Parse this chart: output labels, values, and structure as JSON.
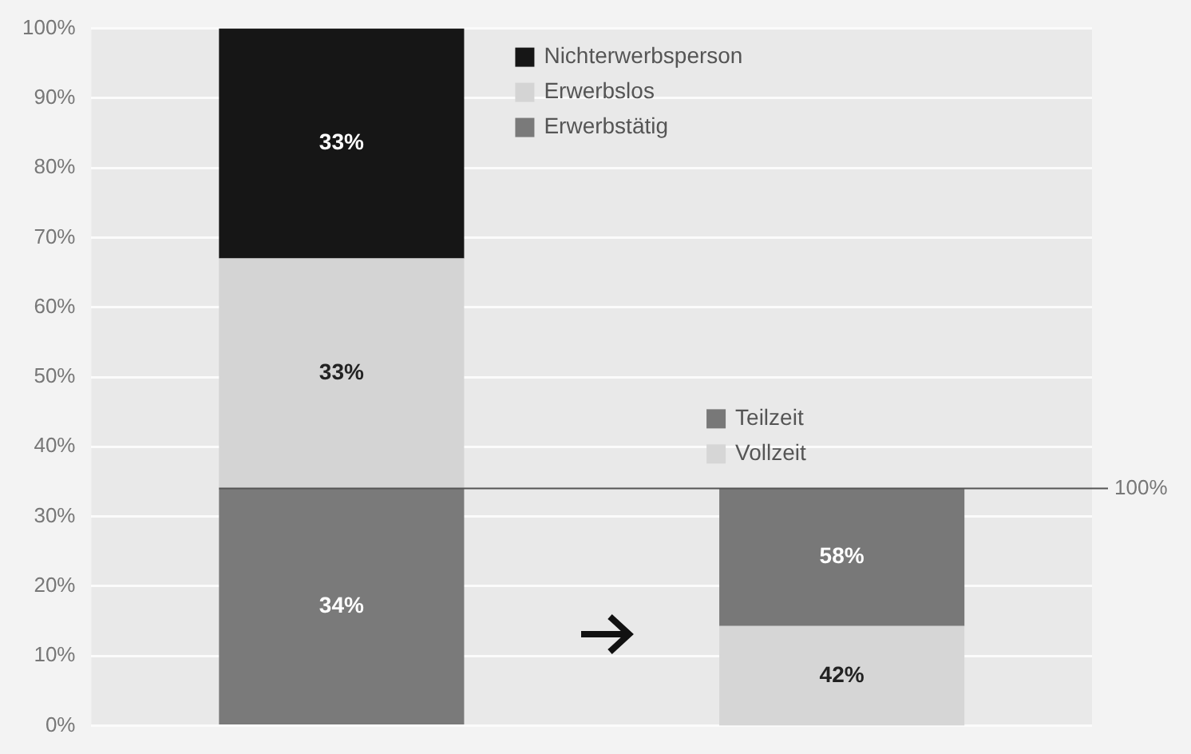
{
  "chart_data": {
    "type": "bar",
    "stacked": true,
    "categories": [
      null,
      null
    ],
    "series": [
      {
        "name": "Erwerbstätig",
        "color": "#7a7a7a",
        "values": [
          34,
          null
        ],
        "value_labels": [
          "34%",
          null
        ]
      },
      {
        "name": "Erwerbslos",
        "color": "#d4d4d4",
        "values": [
          33,
          null
        ],
        "value_labels": [
          "33%",
          null
        ]
      },
      {
        "name": "Nichterwerbsperson",
        "color": "#161616",
        "values": [
          33,
          null
        ],
        "value_labels": [
          "33%",
          null
        ]
      },
      {
        "name": "Vollzeit",
        "color": "#d6d6d6",
        "values": [
          null,
          42
        ],
        "axis": "y2",
        "value_labels": [
          null,
          "42%"
        ]
      },
      {
        "name": "Teilzeit",
        "color": "#787878",
        "values": [
          null,
          58
        ],
        "axis": "y2",
        "value_labels": [
          null,
          "58%"
        ]
      }
    ],
    "ylim": [
      0,
      100
    ],
    "yticks": [
      {
        "value": 0,
        "label": "0%"
      },
      {
        "value": 10,
        "label": "10%"
      },
      {
        "value": 20,
        "label": "20%"
      },
      {
        "value": 30,
        "label": "30%"
      },
      {
        "value": 40,
        "label": "40%"
      },
      {
        "value": 50,
        "label": "50%"
      },
      {
        "value": 60,
        "label": "60%"
      },
      {
        "value": 70,
        "label": "70%"
      },
      {
        "value": 80,
        "label": "80%"
      },
      {
        "value": 90,
        "label": "90%"
      },
      {
        "value": 100,
        "label": "100%"
      }
    ],
    "y2lim": [
      0,
      294
    ],
    "ref_lines": [
      {
        "axis": "y2",
        "value": 100,
        "label": "100%",
        "color": "#555555"
      }
    ],
    "tick_labels": "y",
    "grid": "y",
    "legend": "top right"
  }
}
